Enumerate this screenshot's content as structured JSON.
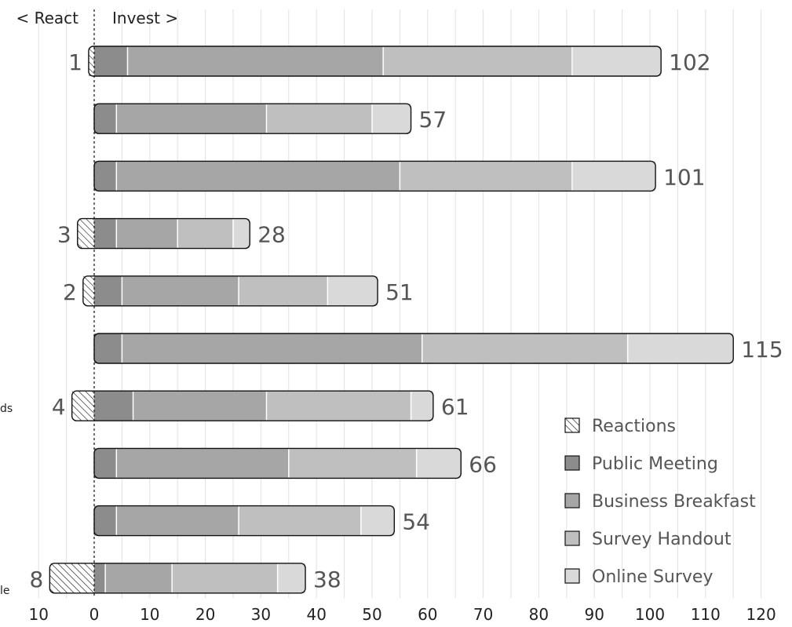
{
  "chart_data": {
    "type": "bar",
    "orientation": "horizontal",
    "stacked": true,
    "direction_labels": {
      "left": "< React",
      "right": "Invest >"
    },
    "x_ticks": [
      "10",
      "0",
      "10",
      "20",
      "30",
      "40",
      "50",
      "60",
      "70",
      "80",
      "90",
      "100",
      "110",
      "120"
    ],
    "xlim": [
      -10,
      120
    ],
    "grid": true,
    "legend_position": "bottom-right",
    "category_labels_visible": [
      "ds",
      "le"
    ],
    "categories": [
      "",
      "",
      "",
      "",
      "",
      "",
      "",
      "",
      "",
      ""
    ],
    "series": [
      {
        "name": "Reactions",
        "color": "#ffffff",
        "pattern": "hatch",
        "values": [
          -1,
          0,
          0,
          -3,
          -2,
          0,
          -4,
          0,
          0,
          -8
        ]
      },
      {
        "name": "Public Meeting",
        "color": "#8c8c8c",
        "values": [
          6,
          4,
          4,
          4,
          5,
          5,
          7,
          4,
          4,
          2
        ]
      },
      {
        "name": "Business Breakfast",
        "color": "#a6a6a6",
        "values": [
          46,
          27,
          51,
          11,
          21,
          54,
          24,
          31,
          22,
          12
        ]
      },
      {
        "name": "Survey Handout",
        "color": "#bfbfbf",
        "values": [
          34,
          19,
          31,
          10,
          16,
          37,
          26,
          23,
          22,
          19
        ]
      },
      {
        "name": "Online Survey",
        "color": "#d9d9d9",
        "values": [
          16,
          7,
          15,
          3,
          9,
          19,
          4,
          8,
          6,
          5
        ]
      }
    ],
    "invest_totals": [
      "102",
      "57",
      "101",
      "28",
      "51",
      "115",
      "61",
      "66",
      "54",
      "38"
    ],
    "react_totals": [
      "1",
      "",
      "",
      "3",
      "2",
      "",
      "4",
      "",
      "",
      "8"
    ]
  }
}
